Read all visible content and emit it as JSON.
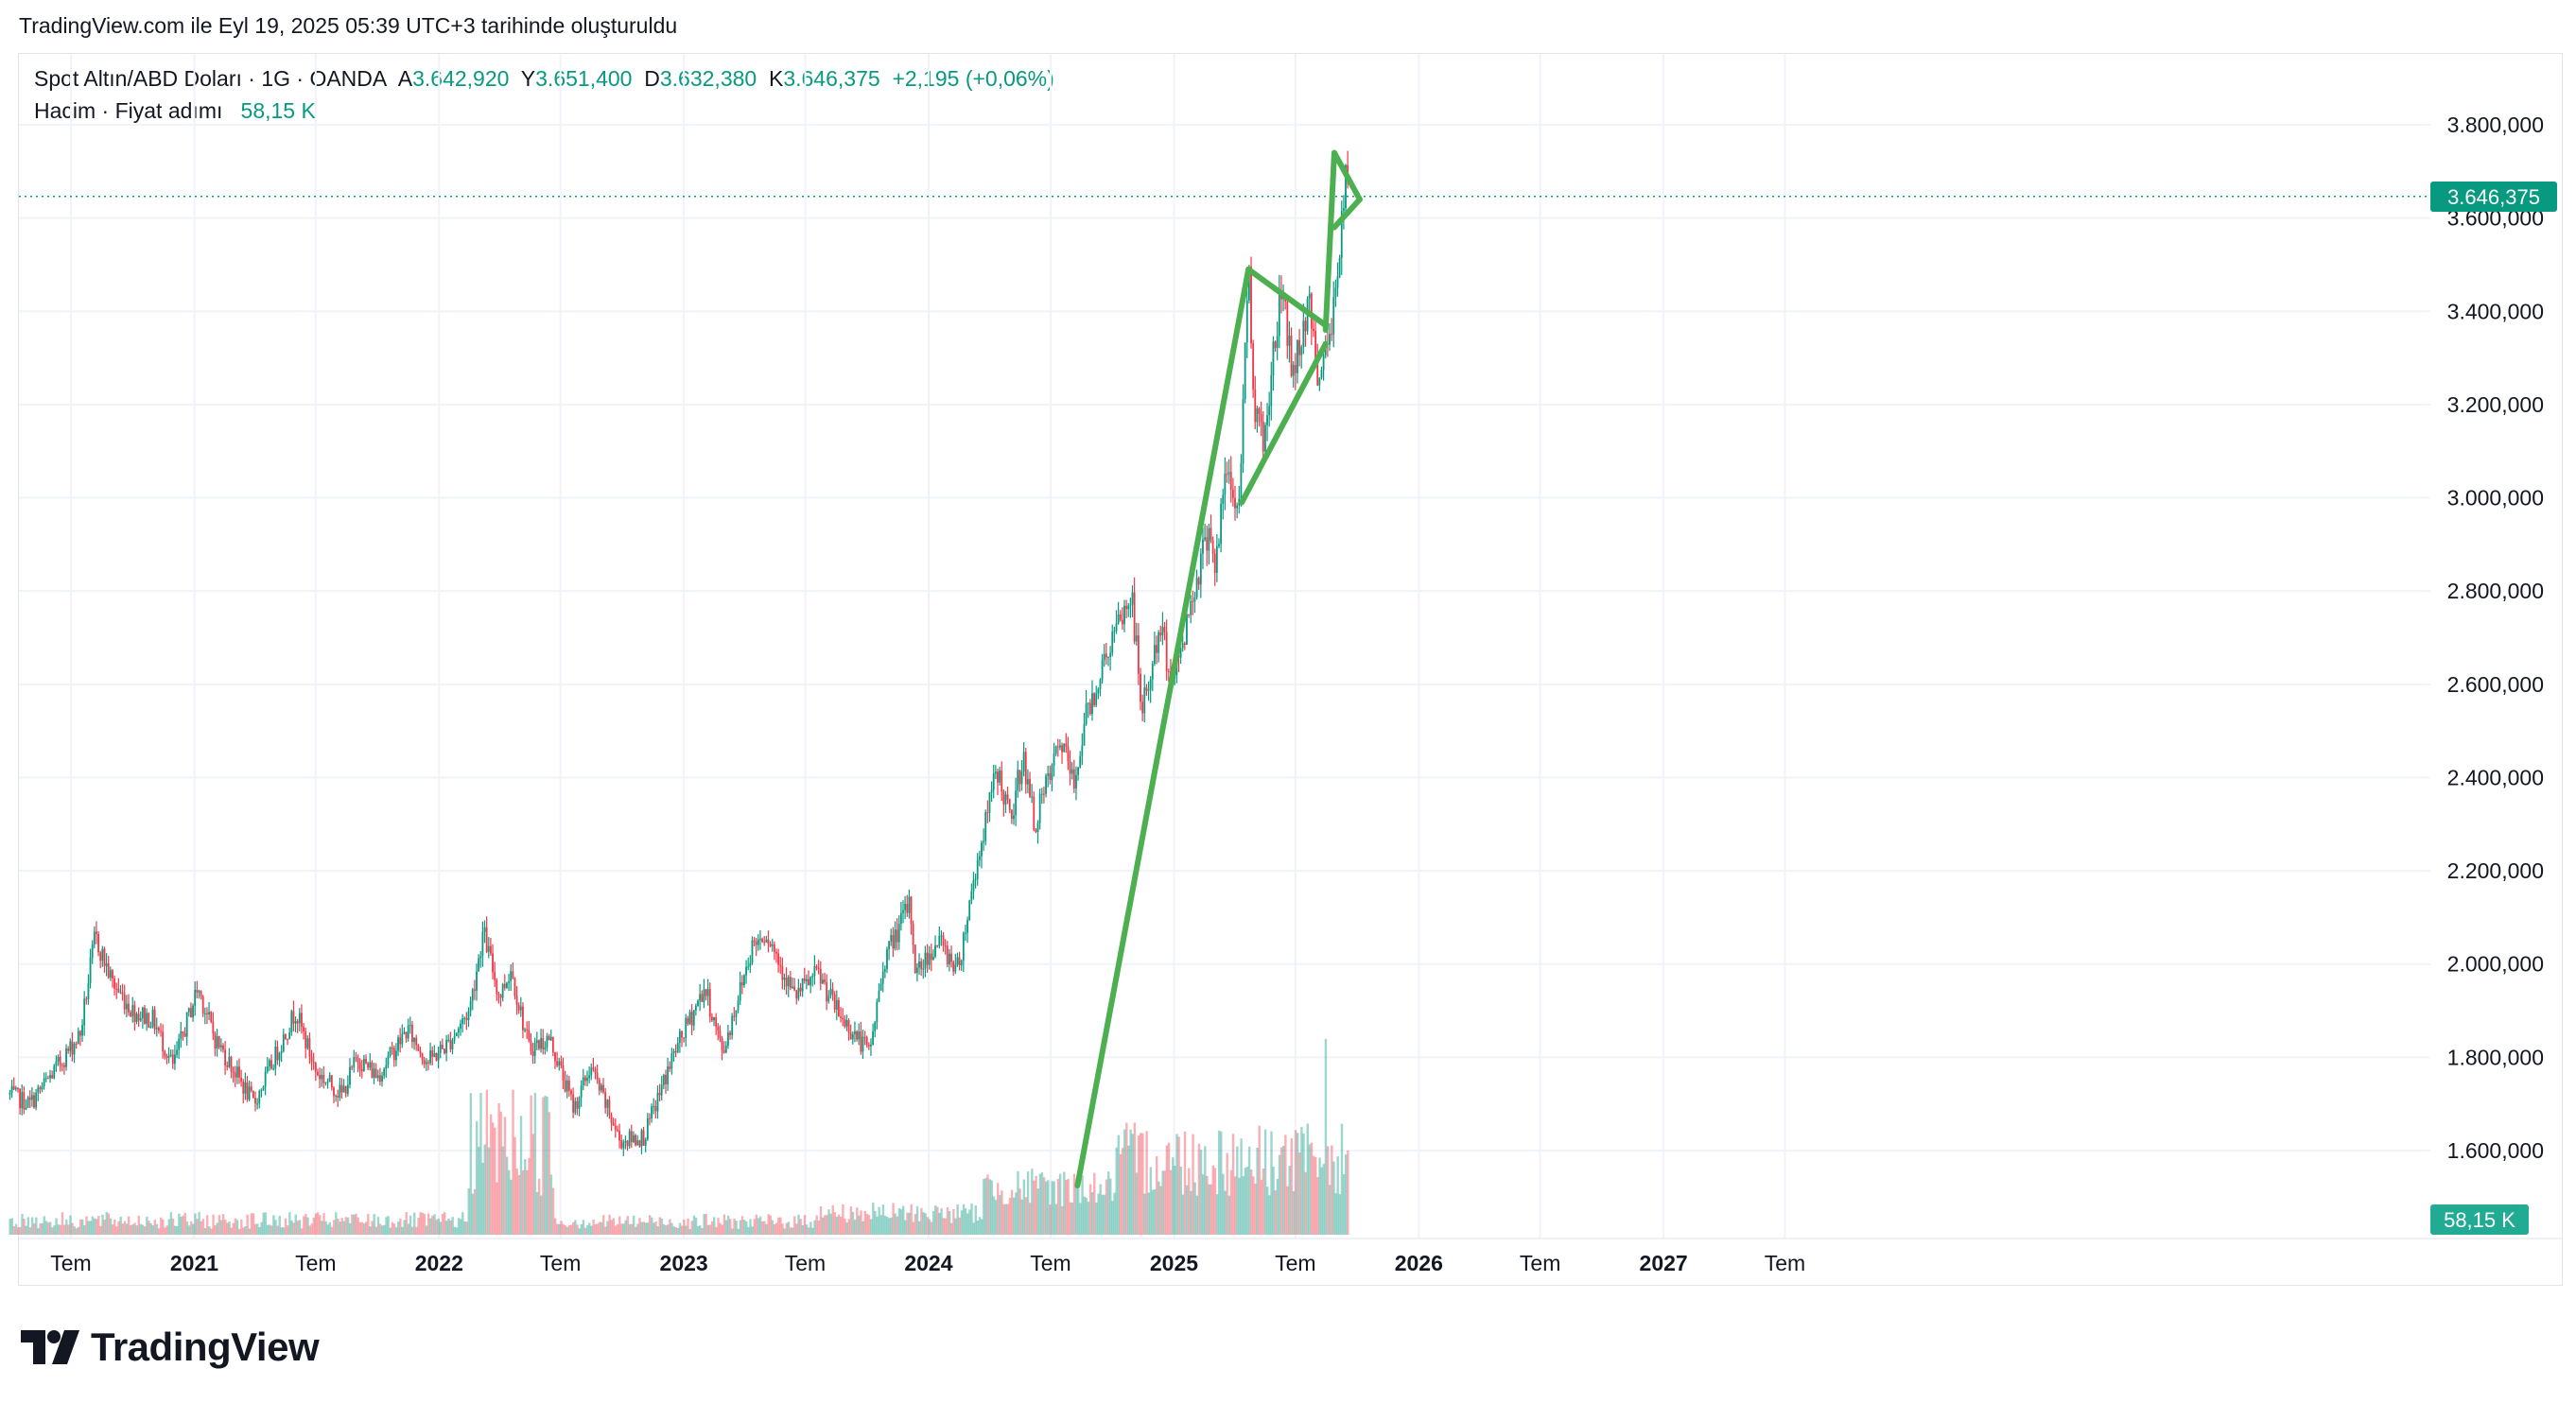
{
  "caption": "TradingView.com ile Eyl 19, 2025 05:39 UTC+3 tarihinde oluşturuldu",
  "legend": {
    "symbol": "Spot Altın/ABD Doları · 1G · OANDA",
    "open_label": "A",
    "open_value": "3.642,920",
    "high_label": "Y",
    "high_value": "3.651,400",
    "low_label": "D",
    "low_value": "3.632,380",
    "close_label": "K",
    "close_value": "3.646,375",
    "change": "+2,195 (+0,06%)",
    "volume_label": "Hacim · Fiyat adımı",
    "volume_value": "58,15 K"
  },
  "logo_text": "TradingView",
  "colors": {
    "up": "#089981",
    "down": "#f23645",
    "drawing": "#4caf50",
    "badge": "#22ab94"
  },
  "chart_data": {
    "type": "candlestick",
    "symbol": "Spot Altın/ABD Doları",
    "interval": "1G",
    "y_ticks": [
      "3.800,000",
      "3.600,000",
      "3.400,000",
      "3.200,000",
      "3.000,000",
      "2.800,000",
      "2.600,000",
      "2.400,000",
      "2.200,000",
      "2.000,000",
      "1.800,000",
      "1.600,000"
    ],
    "ylim": [
      1450,
      3900
    ],
    "x_ticks": [
      "Tem",
      "2021",
      "Tem",
      "2022",
      "Tem",
      "2023",
      "Tem",
      "2024",
      "Tem",
      "2025",
      "Tem",
      "2026",
      "Tem",
      "2027",
      "Tem"
    ],
    "last_price_label": "3.646,375",
    "last_price": 3646.375,
    "volume_label": "58,15 K",
    "price_path": [
      [
        "2020-04-01",
        1720
      ],
      [
        "2020-05-01",
        1700
      ],
      [
        "2020-06-01",
        1760
      ],
      [
        "2020-07-15",
        1850
      ],
      [
        "2020-08-06",
        2060
      ],
      [
        "2020-09-01",
        1960
      ],
      [
        "2020-10-01",
        1900
      ],
      [
        "2020-11-01",
        1880
      ],
      [
        "2020-11-30",
        1780
      ],
      [
        "2021-01-06",
        1950
      ],
      [
        "2021-02-01",
        1840
      ],
      [
        "2021-03-31",
        1700
      ],
      [
        "2021-05-01",
        1800
      ],
      [
        "2021-06-01",
        1900
      ],
      [
        "2021-07-01",
        1770
      ],
      [
        "2021-08-09",
        1720
      ],
      [
        "2021-09-01",
        1800
      ],
      [
        "2021-10-01",
        1760
      ],
      [
        "2021-11-15",
        1860
      ],
      [
        "2021-12-15",
        1790
      ],
      [
        "2022-01-15",
        1830
      ],
      [
        "2022-02-15",
        1900
      ],
      [
        "2022-03-08",
        2070
      ],
      [
        "2022-04-01",
        1930
      ],
      [
        "2022-04-18",
        1990
      ],
      [
        "2022-05-15",
        1820
      ],
      [
        "2022-06-15",
        1840
      ],
      [
        "2022-07-21",
        1690
      ],
      [
        "2022-08-15",
        1780
      ],
      [
        "2022-09-28",
        1620
      ],
      [
        "2022-11-03",
        1630
      ],
      [
        "2022-12-15",
        1800
      ],
      [
        "2023-02-01",
        1950
      ],
      [
        "2023-02-28",
        1810
      ],
      [
        "2023-04-13",
        2040
      ],
      [
        "2023-05-04",
        2070
      ],
      [
        "2023-06-15",
        1930
      ],
      [
        "2023-07-20",
        1980
      ],
      [
        "2023-08-21",
        1890
      ],
      [
        "2023-10-05",
        1810
      ],
      [
        "2023-10-27",
        2010
      ],
      [
        "2023-12-04",
        2130
      ],
      [
        "2023-12-13",
        1980
      ],
      [
        "2024-01-15",
        2050
      ],
      [
        "2024-02-14",
        1990
      ],
      [
        "2024-03-08",
        2180
      ],
      [
        "2024-04-12",
        2420
      ],
      [
        "2024-05-03",
        2300
      ],
      [
        "2024-05-20",
        2450
      ],
      [
        "2024-06-07",
        2300
      ],
      [
        "2024-07-17",
        2480
      ],
      [
        "2024-08-05",
        2380
      ],
      [
        "2024-08-20",
        2520
      ],
      [
        "2024-09-26",
        2680
      ],
      [
        "2024-10-30",
        2790
      ],
      [
        "2024-11-14",
        2540
      ],
      [
        "2024-12-12",
        2720
      ],
      [
        "2024-12-30",
        2600
      ],
      [
        "2025-01-30",
        2800
      ],
      [
        "2025-02-24",
        2950
      ],
      [
        "2025-03-03",
        2840
      ],
      [
        "2025-03-20",
        3060
      ],
      [
        "2025-04-07",
        2960
      ],
      [
        "2025-04-22",
        3500
      ],
      [
        "2025-05-01",
        3200
      ],
      [
        "2025-05-15",
        3120
      ],
      [
        "2025-06-05",
        3400
      ],
      [
        "2025-06-13",
        3440
      ],
      [
        "2025-06-27",
        3260
      ],
      [
        "2025-07-23",
        3440
      ],
      [
        "2025-07-30",
        3270
      ],
      [
        "2025-08-20",
        3320
      ],
      [
        "2025-09-01",
        3480
      ],
      [
        "2025-09-16",
        3700
      ],
      [
        "2025-09-19",
        3646
      ]
    ],
    "annotations": [
      {
        "type": "trend_line",
        "color": "#4caf50",
        "points": [
          [
            "2024-08-10",
            1525
          ],
          [
            "2025-04-22",
            3490
          ]
        ]
      },
      {
        "type": "trend_line",
        "color": "#4caf50",
        "points": [
          [
            "2025-04-22",
            3490
          ],
          [
            "2025-08-15",
            3370
          ]
        ]
      },
      {
        "type": "trend_line",
        "color": "#4caf50",
        "points": [
          [
            "2025-04-12",
            2990
          ],
          [
            "2025-08-15",
            3330
          ]
        ]
      },
      {
        "type": "trend_line",
        "color": "#4caf50",
        "points": [
          [
            "2025-08-15",
            3360
          ],
          [
            "2025-08-28",
            3740
          ]
        ]
      },
      {
        "type": "trend_line",
        "color": "#4caf50",
        "points": [
          [
            "2025-08-28",
            3740
          ],
          [
            "2025-10-05",
            3640
          ]
        ]
      },
      {
        "type": "trend_line",
        "color": "#4caf50",
        "points": [
          [
            "2025-10-05",
            3640
          ],
          [
            "2025-08-28",
            3580
          ]
        ]
      }
    ]
  }
}
